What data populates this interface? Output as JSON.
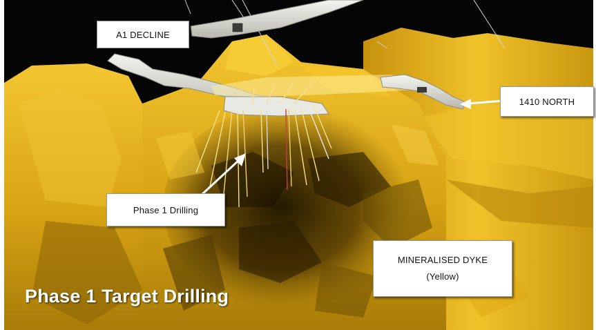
{
  "labels": {
    "a1_decline": "A1 DECLINE",
    "north_1410": "1410 NORTH",
    "phase1_drilling": "Phase 1 Drilling",
    "mineralised_dyke": "MINERALISED DYKE",
    "mineralised_dyke_color": "(Yellow)"
  },
  "caption": "Phase 1 Target Drilling",
  "colors": {
    "background": "#050505",
    "dyke_yellow": "#e4b21a",
    "dyke_dark": "#7a5a06",
    "tunnel": "#e8e8e2",
    "arrow": "#ffffff",
    "caption": "#ffffff"
  }
}
